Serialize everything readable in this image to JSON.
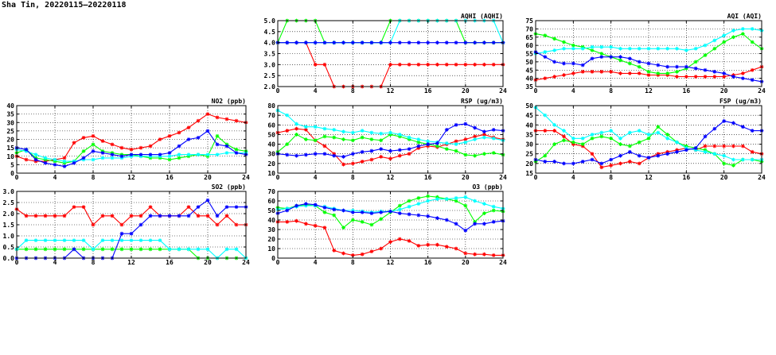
{
  "main": {
    "title": "Sha Tin, 20220115–20220118"
  },
  "panels": [
    {
      "title": "AQHI (AQHI)",
      "x_ticks": [
        "0",
        "4",
        "8",
        "12",
        "16",
        "20",
        "24"
      ],
      "y_ticks": [
        "2.0",
        "2.5",
        "3.0",
        "3.5",
        "4.0",
        "4.5",
        "5.0"
      ]
    },
    {
      "title": "AQI (AQI)",
      "x_ticks": [
        "0",
        "4",
        "8",
        "12",
        "16",
        "20",
        "24"
      ],
      "y_ticks": [
        "35",
        "40",
        "45",
        "50",
        "55",
        "60",
        "65",
        "70",
        "75"
      ]
    },
    {
      "title": "NO2 (ppb)",
      "x_ticks": [
        "0",
        "4",
        "8",
        "12",
        "16",
        "20",
        "24"
      ],
      "y_ticks": [
        "0",
        "5",
        "10",
        "15",
        "20",
        "25",
        "30",
        "35",
        "40"
      ]
    },
    {
      "title": "RSP (ug/m3)",
      "x_ticks": [
        "0",
        "4",
        "8",
        "12",
        "16",
        "20",
        "24"
      ],
      "y_ticks": [
        "10",
        "20",
        "30",
        "40",
        "50",
        "60",
        "70",
        "80"
      ]
    },
    {
      "title": "FSP (ug/m3)",
      "x_ticks": [
        "0",
        "4",
        "8",
        "12",
        "16",
        "20",
        "24"
      ],
      "y_ticks": [
        "15",
        "20",
        "25",
        "30",
        "35",
        "40",
        "45",
        "50"
      ]
    },
    {
      "title": "SO2 (ppb)",
      "x_ticks": [
        "0",
        "4",
        "8",
        "12",
        "16",
        "20",
        "24"
      ],
      "y_ticks": [
        "0.0",
        "0.5",
        "1.0",
        "1.5",
        "2.0",
        "2.5",
        "3.0"
      ]
    },
    {
      "title": "O3 (ppb)",
      "x_ticks": [
        "0",
        "4",
        "8",
        "12",
        "16",
        "20",
        "24"
      ],
      "y_ticks": [
        "0",
        "10",
        "20",
        "30",
        "40",
        "50",
        "60",
        "70"
      ]
    }
  ],
  "chart_data": [
    {
      "type": "line",
      "title": "AQHI (AQHI)",
      "xlim": [
        0,
        24
      ],
      "ylim": [
        2.0,
        5.0
      ],
      "grid": true,
      "x": [
        0,
        1,
        2,
        3,
        4,
        5,
        6,
        7,
        8,
        9,
        10,
        11,
        12,
        13,
        14,
        15,
        16,
        17,
        18,
        19,
        20,
        21,
        22,
        23,
        24
      ],
      "series": [
        {
          "color": "#ff0000",
          "values": [
            4,
            4,
            4,
            4,
            3,
            3,
            2,
            2,
            2,
            2,
            2,
            2,
            3,
            3,
            3,
            3,
            3,
            3,
            3,
            3,
            3,
            3,
            3,
            3,
            3
          ]
        },
        {
          "color": "#00ff00",
          "values": [
            4,
            5,
            5,
            5,
            5,
            4,
            4,
            4,
            4,
            4,
            4,
            4,
            5,
            5,
            5,
            5,
            5,
            5,
            5,
            5,
            4,
            4,
            4,
            4,
            4
          ]
        },
        {
          "color": "#00ffff",
          "values": [
            4,
            4,
            4,
            4,
            4,
            4,
            4,
            4,
            4,
            4,
            4,
            4,
            4,
            5,
            5,
            5,
            5,
            5,
            5,
            5,
            5,
            5,
            5,
            5,
            4
          ]
        },
        {
          "color": "#0000ff",
          "values": [
            4,
            4,
            4,
            4,
            4,
            4,
            4,
            4,
            4,
            4,
            4,
            4,
            4,
            4,
            4,
            4,
            4,
            4,
            4,
            4,
            4,
            4,
            4,
            4,
            4
          ]
        }
      ]
    },
    {
      "type": "line",
      "title": "AQI (AQI)",
      "xlim": [
        0,
        24
      ],
      "ylim": [
        35,
        75
      ],
      "grid": true,
      "x": [
        0,
        1,
        2,
        3,
        4,
        5,
        6,
        7,
        8,
        9,
        10,
        11,
        12,
        13,
        14,
        15,
        16,
        17,
        18,
        19,
        20,
        21,
        22,
        23,
        24
      ],
      "series": [
        {
          "color": "#ff0000",
          "values": [
            39,
            40,
            41,
            42,
            43,
            44,
            44,
            44,
            44,
            43,
            43,
            43,
            42,
            42,
            42,
            41,
            41,
            41,
            41,
            41,
            41,
            42,
            43,
            45,
            47
          ]
        },
        {
          "color": "#00ff00",
          "values": [
            67,
            66,
            64,
            62,
            60,
            59,
            57,
            55,
            53,
            51,
            49,
            47,
            44,
            43,
            43,
            44,
            46,
            50,
            54,
            58,
            62,
            65,
            67,
            62,
            58
          ]
        },
        {
          "color": "#00ffff",
          "values": [
            55,
            56,
            57,
            58,
            58,
            58,
            59,
            59,
            59,
            58,
            58,
            58,
            58,
            58,
            58,
            58,
            57,
            58,
            60,
            63,
            66,
            69,
            70,
            70,
            69
          ]
        },
        {
          "color": "#0000ff",
          "values": [
            56,
            53,
            50,
            49,
            49,
            48,
            52,
            53,
            53,
            53,
            52,
            50,
            49,
            48,
            47,
            47,
            47,
            46,
            45,
            44,
            43,
            41,
            40,
            39,
            38
          ]
        }
      ]
    },
    {
      "type": "line",
      "title": "NO2 (ppb)",
      "xlim": [
        0,
        24
      ],
      "ylim": [
        0,
        40
      ],
      "grid": true,
      "x": [
        0,
        1,
        2,
        3,
        4,
        5,
        6,
        7,
        8,
        9,
        10,
        11,
        12,
        13,
        14,
        15,
        16,
        17,
        18,
        19,
        20,
        21,
        22,
        23,
        24
      ],
      "series": [
        {
          "color": "#ff0000",
          "values": [
            10,
            8,
            7,
            7,
            8,
            9,
            18,
            21,
            22,
            19,
            17,
            15,
            14,
            15,
            16,
            20,
            22,
            24,
            27,
            31,
            35,
            33,
            32,
            31,
            30
          ]
        },
        {
          "color": "#00ff00",
          "values": [
            12,
            14,
            9,
            8,
            7,
            6,
            7,
            13,
            17,
            13,
            12,
            11,
            11,
            10,
            9,
            9,
            8,
            9,
            10,
            11,
            10,
            22,
            17,
            14,
            13
          ]
        },
        {
          "color": "#00ffff",
          "values": [
            14,
            13,
            11,
            9,
            8,
            7,
            7,
            8,
            8,
            9,
            9,
            9,
            10,
            10,
            10,
            10,
            10,
            11,
            11,
            11,
            11,
            11,
            12,
            12,
            12
          ]
        },
        {
          "color": "#0000ff",
          "values": [
            15,
            14,
            8,
            6,
            5,
            4,
            6,
            9,
            13,
            12,
            11,
            10,
            11,
            11,
            11,
            11,
            12,
            16,
            20,
            21,
            25,
            17,
            16,
            12,
            11
          ]
        }
      ]
    },
    {
      "type": "line",
      "title": "RSP (ug/m3)",
      "xlim": [
        0,
        24
      ],
      "ylim": [
        10,
        80
      ],
      "grid": true,
      "x": [
        0,
        1,
        2,
        3,
        4,
        5,
        6,
        7,
        8,
        9,
        10,
        11,
        12,
        13,
        14,
        15,
        16,
        17,
        18,
        19,
        20,
        21,
        22,
        23,
        24
      ],
      "series": [
        {
          "color": "#ff0000",
          "values": [
            52,
            54,
            56,
            55,
            44,
            38,
            30,
            19,
            20,
            22,
            24,
            27,
            25,
            28,
            30,
            36,
            38,
            37,
            40,
            43,
            45,
            48,
            50,
            47,
            45
          ]
        },
        {
          "color": "#00ff00",
          "values": [
            32,
            40,
            50,
            45,
            44,
            48,
            47,
            45,
            44,
            47,
            45,
            44,
            50,
            48,
            45,
            42,
            40,
            38,
            35,
            33,
            29,
            28,
            30,
            31,
            29
          ]
        },
        {
          "color": "#00ffff",
          "values": [
            75,
            70,
            61,
            58,
            58,
            56,
            55,
            53,
            52,
            54,
            52,
            51,
            52,
            50,
            47,
            45,
            43,
            42,
            41,
            40,
            42,
            45,
            47,
            46,
            44
          ]
        },
        {
          "color": "#0000ff",
          "values": [
            30,
            29,
            28,
            29,
            30,
            30,
            28,
            27,
            30,
            32,
            33,
            35,
            33,
            34,
            35,
            38,
            40,
            41,
            55,
            60,
            61,
            57,
            53,
            55,
            54
          ]
        }
      ]
    },
    {
      "type": "line",
      "title": "FSP (ug/m3)",
      "xlim": [
        0,
        24
      ],
      "ylim": [
        15,
        50
      ],
      "grid": true,
      "x": [
        0,
        1,
        2,
        3,
        4,
        5,
        6,
        7,
        8,
        9,
        10,
        11,
        12,
        13,
        14,
        15,
        16,
        17,
        18,
        19,
        20,
        21,
        22,
        23,
        24
      ],
      "series": [
        {
          "color": "#ff0000",
          "values": [
            37,
            37,
            37,
            34,
            30,
            29,
            25,
            18,
            19,
            20,
            21,
            20,
            23,
            25,
            26,
            27,
            28,
            27,
            29,
            29,
            29,
            29,
            29,
            26,
            25
          ]
        },
        {
          "color": "#00ff00",
          "values": [
            21,
            24,
            30,
            32,
            31,
            30,
            33,
            34,
            33,
            30,
            29,
            31,
            33,
            39,
            35,
            31,
            29,
            28,
            27,
            25,
            20,
            19,
            22,
            22,
            21
          ]
        },
        {
          "color": "#00ffff",
          "values": [
            49,
            45,
            40,
            37,
            33,
            33,
            35,
            36,
            37,
            33,
            36,
            37,
            35,
            36,
            33,
            31,
            28,
            27,
            26,
            25,
            24,
            22,
            22,
            22,
            22
          ]
        },
        {
          "color": "#0000ff",
          "values": [
            22,
            21,
            21,
            20,
            20,
            21,
            22,
            20,
            22,
            24,
            26,
            24,
            23,
            24,
            25,
            26,
            27,
            28,
            34,
            38,
            42,
            41,
            39,
            37,
            37
          ]
        }
      ]
    },
    {
      "type": "line",
      "title": "SO2 (ppb)",
      "xlim": [
        0,
        24
      ],
      "ylim": [
        0.0,
        3.0
      ],
      "grid": true,
      "x": [
        0,
        1,
        2,
        3,
        4,
        5,
        6,
        7,
        8,
        9,
        10,
        11,
        12,
        13,
        14,
        15,
        16,
        17,
        18,
        19,
        20,
        21,
        22,
        23,
        24
      ],
      "series": [
        {
          "color": "#ff0000",
          "values": [
            2.2,
            1.9,
            1.9,
            1.9,
            1.9,
            1.9,
            2.3,
            2.3,
            1.5,
            1.9,
            1.9,
            1.5,
            1.9,
            1.9,
            2.3,
            1.9,
            1.9,
            1.9,
            2.3,
            1.9,
            1.9,
            1.5,
            1.9,
            1.5,
            1.5
          ]
        },
        {
          "color": "#00ff00",
          "values": [
            0.4,
            0.4,
            0.4,
            0.4,
            0.4,
            0.4,
            0.4,
            0.4,
            0.4,
            0.4,
            0.4,
            0.4,
            0.4,
            0.4,
            0.4,
            0.4,
            0.4,
            0.4,
            0.4,
            0.0,
            0.0,
            0.0,
            0.0,
            0.0,
            0.0
          ]
        },
        {
          "color": "#00ffff",
          "values": [
            0.4,
            0.8,
            0.8,
            0.8,
            0.8,
            0.8,
            0.8,
            0.8,
            0.4,
            0.8,
            0.8,
            0.8,
            0.8,
            0.8,
            0.8,
            0.8,
            0.4,
            0.4,
            0.4,
            0.4,
            0.4,
            0.0,
            0.4,
            0.4,
            0.0
          ]
        },
        {
          "color": "#0000ff",
          "values": [
            0.0,
            0.0,
            0.0,
            0.0,
            0.0,
            0.0,
            0.4,
            0.0,
            0.0,
            0.0,
            0.0,
            1.1,
            1.1,
            1.5,
            1.9,
            1.9,
            1.9,
            1.9,
            1.9,
            2.3,
            2.6,
            1.9,
            2.3,
            2.3,
            2.3
          ]
        }
      ]
    },
    {
      "type": "line",
      "title": "O3 (ppb)",
      "xlim": [
        0,
        24
      ],
      "ylim": [
        0,
        70
      ],
      "grid": true,
      "x": [
        0,
        1,
        2,
        3,
        4,
        5,
        6,
        7,
        8,
        9,
        10,
        11,
        12,
        13,
        14,
        15,
        16,
        17,
        18,
        19,
        20,
        21,
        22,
        23,
        24
      ],
      "series": [
        {
          "color": "#ff0000",
          "values": [
            38,
            38,
            39,
            36,
            34,
            32,
            8,
            5,
            3,
            4,
            7,
            10,
            17,
            20,
            18,
            13,
            14,
            14,
            12,
            10,
            5,
            4,
            4,
            3,
            3
          ]
        },
        {
          "color": "#00ff00",
          "values": [
            53,
            52,
            55,
            56,
            55,
            48,
            45,
            32,
            40,
            38,
            35,
            41,
            48,
            55,
            60,
            63,
            65,
            64,
            62,
            60,
            55,
            38,
            47,
            50,
            49
          ]
        },
        {
          "color": "#00ffff",
          "values": [
            51,
            52,
            54,
            55,
            55,
            54,
            52,
            50,
            50,
            49,
            48,
            49,
            49,
            51,
            54,
            57,
            60,
            62,
            62,
            63,
            64,
            60,
            57,
            54,
            52
          ]
        },
        {
          "color": "#0000ff",
          "values": [
            47,
            50,
            55,
            57,
            56,
            53,
            51,
            50,
            48,
            48,
            47,
            48,
            49,
            47,
            46,
            45,
            44,
            42,
            40,
            36,
            29,
            36,
            36,
            38,
            39
          ]
        }
      ]
    }
  ]
}
